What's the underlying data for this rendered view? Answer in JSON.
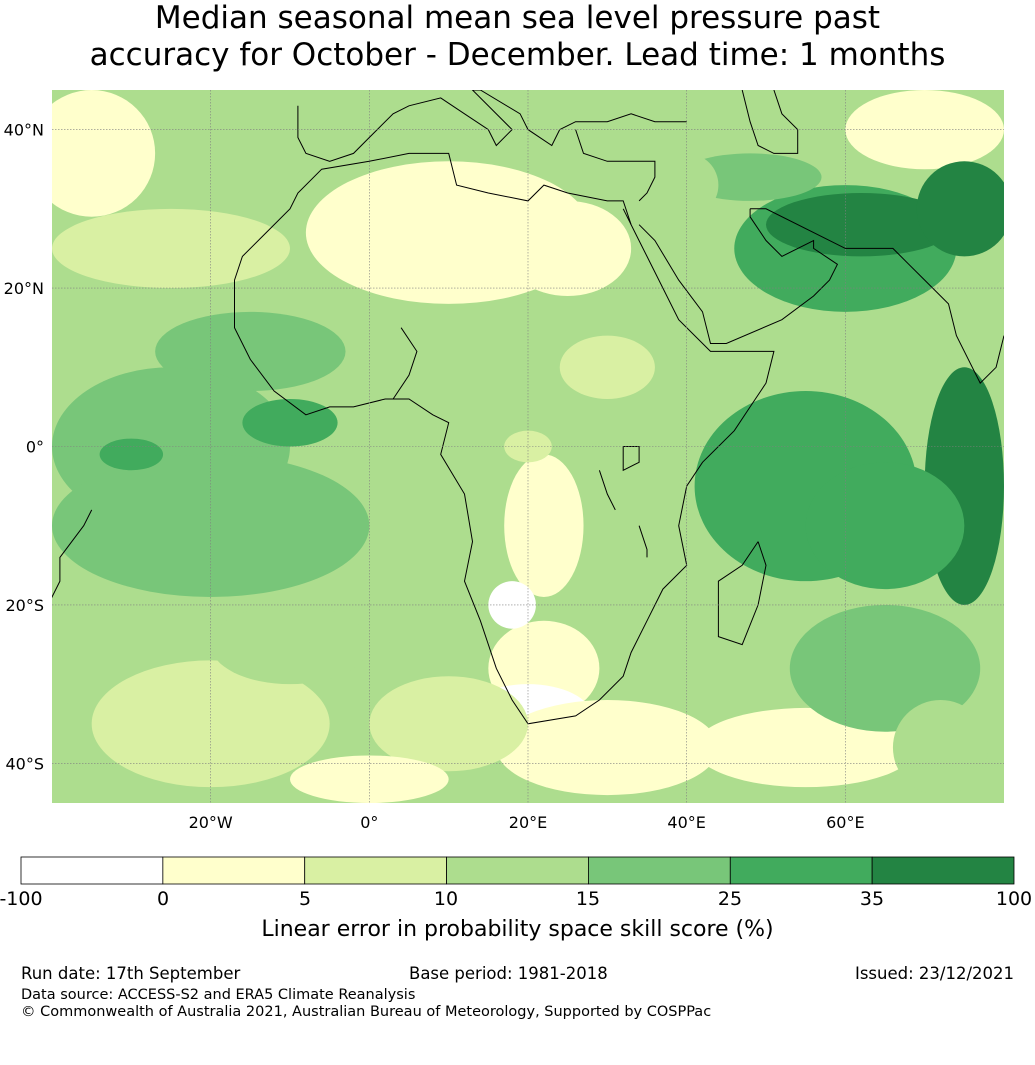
{
  "title": {
    "line1": "Median seasonal mean sea level pressure past",
    "line2": "accuracy for October - December. Lead time: 1 months"
  },
  "map": {
    "extent": {
      "lon_min": -40,
      "lon_max": 80,
      "lat_min": -45,
      "lat_max": 45
    },
    "lat_ticks": [
      {
        "lat": 40,
        "label": "40°N"
      },
      {
        "lat": 20,
        "label": "20°N"
      },
      {
        "lat": 0,
        "label": "0°"
      },
      {
        "lat": -20,
        "label": "20°S"
      },
      {
        "lat": -40,
        "label": "40°S"
      }
    ],
    "lon_ticks": [
      {
        "lon": -20,
        "label": "20°W"
      },
      {
        "lon": 0,
        "label": "0°"
      },
      {
        "lon": 20,
        "label": "20°E"
      },
      {
        "lon": 40,
        "label": "40°E"
      },
      {
        "lon": 60,
        "label": "60°E"
      }
    ]
  },
  "colorbar": {
    "ticks": [
      "-100",
      "0",
      "5",
      "10",
      "15",
      "25",
      "35",
      "100"
    ],
    "colors": [
      "#ffffff",
      "#ffffcc",
      "#d9f0a3",
      "#addd8e",
      "#78c679",
      "#41ab5d",
      "#238443"
    ],
    "label": "Linear error in probability space skill score (%)"
  },
  "footer": {
    "run_date": "Run date: 17th September",
    "base_period": "Base period: 1981-2018",
    "issued": "Issued: 23/12/2021",
    "data_source": "Data source: ACCESS-S2 and ERA5 Climate Reanalysis",
    "copyright": "© Commonwealth of Australia 2021, Australian Bureau of Meteorology, Supported by COSPPac"
  }
}
